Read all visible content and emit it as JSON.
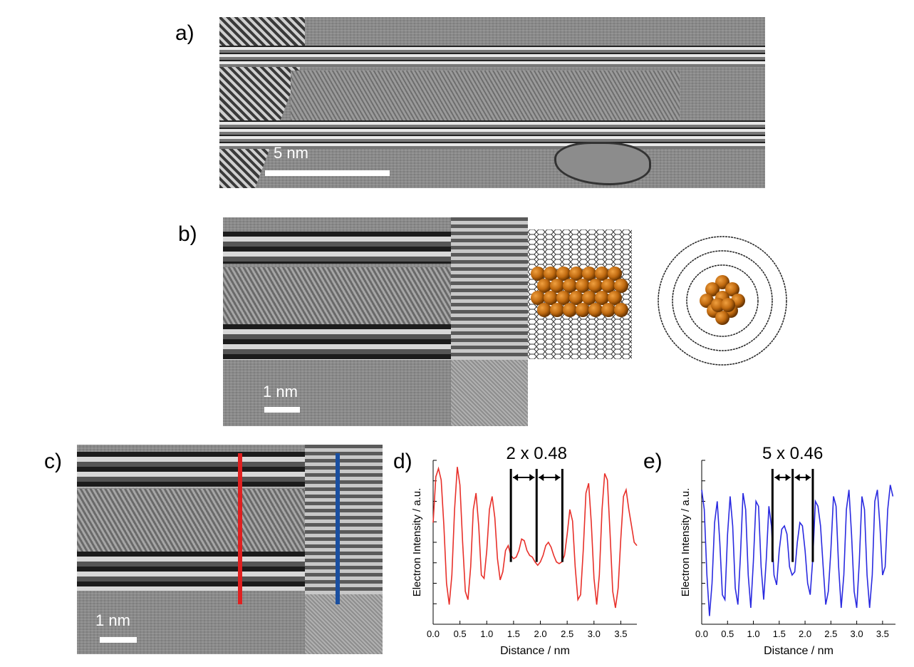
{
  "panels": {
    "a": {
      "label": "a)",
      "scale": "5 nm"
    },
    "b": {
      "label": "b)",
      "scale": "1 nm"
    },
    "c": {
      "label": "c)",
      "scale": "1 nm"
    },
    "d": {
      "label": "d)",
      "annotation": "2 x 0.48"
    },
    "e": {
      "label": "e)",
      "annotation": "5 x 0.46"
    }
  },
  "chart_data": [
    {
      "type": "line",
      "panel": "d",
      "xlabel": "Distance / nm",
      "ylabel": "Electron Intensity / a.u.",
      "xlim": [
        0,
        3.8
      ],
      "ylim": [
        0,
        1
      ],
      "xticks": [
        "0.0",
        "0.5",
        "1.0",
        "1.5",
        "2.0",
        "2.5",
        "3.0",
        "3.5"
      ],
      "color": "#e8302a",
      "series": [
        {
          "x": [
            0.0,
            0.05,
            0.1,
            0.15,
            0.2,
            0.25,
            0.3,
            0.35,
            0.4,
            0.45,
            0.5,
            0.55,
            0.6,
            0.65,
            0.7,
            0.75,
            0.8,
            0.85,
            0.9,
            0.95,
            1.0,
            1.05,
            1.1,
            1.15,
            1.2,
            1.25,
            1.3,
            1.35,
            1.4,
            1.45,
            1.5,
            1.55,
            1.6,
            1.65,
            1.7,
            1.75,
            1.8,
            1.85,
            1.9,
            1.95,
            2.0,
            2.05,
            2.1,
            2.15,
            2.2,
            2.25,
            2.3,
            2.35,
            2.4,
            2.45,
            2.5,
            2.55,
            2.6,
            2.65,
            2.7,
            2.75,
            2.8,
            2.85,
            2.9,
            2.95,
            3.0,
            3.05,
            3.1,
            3.15,
            3.2,
            3.25,
            3.3,
            3.35,
            3.4,
            3.45,
            3.5,
            3.55,
            3.6,
            3.65,
            3.7,
            3.75,
            3.8
          ],
          "values": [
            0.62,
            0.9,
            0.95,
            0.88,
            0.6,
            0.25,
            0.12,
            0.3,
            0.7,
            0.96,
            0.85,
            0.5,
            0.2,
            0.15,
            0.35,
            0.7,
            0.8,
            0.6,
            0.3,
            0.28,
            0.45,
            0.7,
            0.78,
            0.65,
            0.4,
            0.27,
            0.32,
            0.45,
            0.48,
            0.42,
            0.4,
            0.41,
            0.45,
            0.52,
            0.51,
            0.45,
            0.42,
            0.41,
            0.38,
            0.36,
            0.38,
            0.42,
            0.48,
            0.5,
            0.47,
            0.42,
            0.38,
            0.37,
            0.38,
            0.42,
            0.55,
            0.7,
            0.63,
            0.35,
            0.15,
            0.18,
            0.45,
            0.8,
            0.86,
            0.62,
            0.28,
            0.12,
            0.3,
            0.7,
            0.92,
            0.88,
            0.55,
            0.2,
            0.1,
            0.22,
            0.52,
            0.78,
            0.82,
            0.7,
            0.6,
            0.5,
            0.48
          ]
        }
      ],
      "markers_x": [
        1.45,
        1.93,
        2.41
      ]
    },
    {
      "type": "line",
      "panel": "e",
      "xlabel": "Distance / nm",
      "ylabel": "Electron Intensity / a.u.",
      "xlim": [
        0,
        3.75
      ],
      "ylim": [
        0,
        1
      ],
      "xticks": [
        "0.0",
        "0.5",
        "1.0",
        "1.5",
        "2.0",
        "2.5",
        "3.0",
        "3.5"
      ],
      "color": "#2a2ae0",
      "series": [
        {
          "x": [
            0.0,
            0.05,
            0.1,
            0.15,
            0.2,
            0.25,
            0.3,
            0.35,
            0.4,
            0.45,
            0.5,
            0.55,
            0.6,
            0.65,
            0.7,
            0.75,
            0.8,
            0.85,
            0.9,
            0.95,
            1.0,
            1.05,
            1.1,
            1.15,
            1.2,
            1.25,
            1.3,
            1.35,
            1.4,
            1.45,
            1.5,
            1.55,
            1.6,
            1.65,
            1.7,
            1.75,
            1.8,
            1.85,
            1.9,
            1.95,
            2.0,
            2.05,
            2.1,
            2.15,
            2.2,
            2.25,
            2.3,
            2.35,
            2.4,
            2.45,
            2.5,
            2.55,
            2.6,
            2.65,
            2.7,
            2.75,
            2.8,
            2.85,
            2.9,
            2.95,
            3.0,
            3.05,
            3.1,
            3.15,
            3.2,
            3.25,
            3.3,
            3.35,
            3.4,
            3.45,
            3.5,
            3.55,
            3.6,
            3.65,
            3.7
          ],
          "values": [
            0.82,
            0.7,
            0.3,
            0.05,
            0.25,
            0.62,
            0.75,
            0.5,
            0.18,
            0.15,
            0.55,
            0.78,
            0.6,
            0.22,
            0.12,
            0.42,
            0.8,
            0.7,
            0.3,
            0.1,
            0.38,
            0.75,
            0.72,
            0.35,
            0.15,
            0.4,
            0.72,
            0.6,
            0.3,
            0.24,
            0.45,
            0.58,
            0.6,
            0.55,
            0.35,
            0.3,
            0.32,
            0.5,
            0.62,
            0.6,
            0.45,
            0.25,
            0.18,
            0.4,
            0.75,
            0.72,
            0.6,
            0.35,
            0.12,
            0.2,
            0.45,
            0.78,
            0.72,
            0.35,
            0.1,
            0.3,
            0.7,
            0.82,
            0.55,
            0.2,
            0.1,
            0.38,
            0.78,
            0.7,
            0.3,
            0.1,
            0.3,
            0.75,
            0.82,
            0.6,
            0.3,
            0.35,
            0.7,
            0.85,
            0.78
          ]
        }
      ],
      "markers_x": [
        1.37,
        1.76,
        2.15
      ]
    }
  ]
}
